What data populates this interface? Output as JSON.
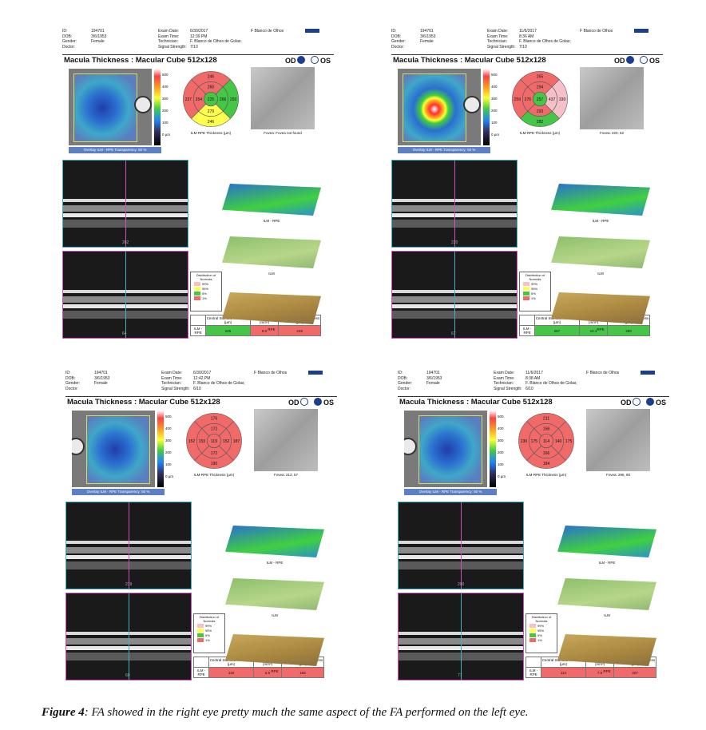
{
  "panels": [
    {
      "header": {
        "labels1": [
          "ID:",
          "DOB:",
          "Gender:",
          "Doctor:"
        ],
        "values1": [
          "194701",
          "3/6/1953",
          "Female",
          ""
        ],
        "labels2": [
          "Exam Date:",
          "Exam Time:",
          "Technician:",
          "Signal Strength:"
        ],
        "values2": [
          "6/30/2017",
          "12:39 PM",
          "F. Blanco de Olhos de Golas;",
          "7/10"
        ],
        "clinic": "F Blanco de Olhos"
      },
      "title": "Macula Thickness : Macular Cube 512x128",
      "eye_od": "OD",
      "eye_os": "OS",
      "selected": "OD",
      "colorbar": [
        "500",
        "400",
        "300",
        "200",
        "100",
        "0 µm"
      ],
      "overlay": "Overlay ILM - RPE  Transparency: 50 %",
      "etdrs": {
        "center": "225",
        "inner": [
          "260",
          "266",
          "279",
          "254"
        ],
        "outer": [
          "246",
          "250",
          "246",
          "237"
        ],
        "colors": {
          "center": "#46c646",
          "inner": [
            "#f06a6a",
            "#46c646",
            "#ffff50",
            "#f06a6a"
          ],
          "outer": [
            "#f06a6a",
            "#46c646",
            "#ffff50",
            "#f06a6a"
          ]
        }
      },
      "etdrs_caption": "ILM-RPE Thickness (µm)",
      "fundus_caption": "Fovea: Fovea not found",
      "bscan_h_num": "262",
      "bscan_v_num": "64",
      "surfaces": [
        "ILM - RPE",
        "ILM",
        "RPE"
      ],
      "distribution": {
        "title": "Distribution of Normals",
        "items": [
          "99%",
          "95%",
          "5%",
          "1%"
        ]
      },
      "table": {
        "headers": [
          "Central Subfield Thickness (µm)",
          "Cube Volume (mm³)",
          "Cube Average Thickness (µm)"
        ],
        "row_label": "ILM - RPE",
        "values": [
          "225",
          "9.0",
          "249"
        ],
        "colors": [
          "#46c646",
          "#f06a6a",
          "#f06a6a"
        ]
      }
    },
    {
      "header": {
        "labels1": [
          "ID:",
          "DOB:",
          "Gender:",
          "Doctor:"
        ],
        "values1": [
          "194701",
          "3/6/1953",
          "Female",
          ""
        ],
        "labels2": [
          "Exam Date:",
          "Exam Time:",
          "Technician:",
          "Signal Strength:"
        ],
        "values2": [
          "11/6/2017",
          "8:36 AM",
          "F. Blanco de Olhos de Golas;",
          "7/10"
        ],
        "clinic": "F Blanco de Olhos"
      },
      "title": "Macula Thickness : Macular Cube 512x128",
      "eye_od": "OD",
      "eye_os": "OS",
      "selected": "OD",
      "colorbar": [
        "500",
        "400",
        "300",
        "200",
        "100",
        "0 µm"
      ],
      "overlay": "Overlay ILM - RPE  Transparency: 50 %",
      "etdrs": {
        "center": "257",
        "inner": [
          "294",
          "437",
          "293",
          "276"
        ],
        "outer": [
          "265",
          "330",
          "282",
          "259"
        ],
        "colors": {
          "center": "#46c646",
          "inner": [
            "#f06a6a",
            "#f5c0c8",
            "#f06a6a",
            "#f06a6a"
          ],
          "outer": [
            "#f06a6a",
            "#f5c0c8",
            "#46c646",
            "#f06a6a"
          ]
        }
      },
      "etdrs_caption": "ILM-RPE Thickness (µm)",
      "fundus_caption": "Fovea: 220, 62",
      "bscan_h_num": "220",
      "bscan_v_num": "67",
      "surfaces": [
        "ILM - RPE",
        "ILM",
        "RPE"
      ],
      "distribution": {
        "title": "Distribution of Normals",
        "items": [
          "99%",
          "95%",
          "5%",
          "1%"
        ]
      },
      "table": {
        "headers": [
          "Central Subfield Thickness (µm)",
          "Cube Volume (mm³)",
          "Cube Average Thickness (µm)"
        ],
        "row_label": "ILM - RPE",
        "values": [
          "257",
          "10.1",
          "280"
        ],
        "colors": [
          "#46c646",
          "#46c646",
          "#46c646"
        ]
      }
    },
    {
      "header": {
        "labels1": [
          "ID:",
          "DOB:",
          "Gender:",
          "Doctor:"
        ],
        "values1": [
          "194701",
          "3/6/1953",
          "Female",
          ""
        ],
        "labels2": [
          "Exam Date:",
          "Exam Time:",
          "Technician:",
          "Signal Strength:"
        ],
        "values2": [
          "6/30/2017",
          "12:42 PM",
          "F. Blanco de Olhos de Golas;",
          "6/10"
        ],
        "clinic": "F Blanco de Olhos"
      },
      "title": "Macula Thickness : Macular Cube 512x128",
      "eye_od": "OD",
      "eye_os": "OS",
      "selected": "OS",
      "colorbar": [
        "500",
        "400",
        "300",
        "200",
        "100",
        "0 µm"
      ],
      "overlay": "Overlay ILM - RPE  Transparency: 50 %",
      "etdrs": {
        "center": "119",
        "inner": [
          "172",
          "152",
          "172",
          "153"
        ],
        "outer": [
          "176",
          "187",
          "190",
          "152"
        ],
        "colors": {
          "center": "#f06a6a",
          "inner": [
            "#f06a6a",
            "#f06a6a",
            "#f06a6a",
            "#f06a6a"
          ],
          "outer": [
            "#f06a6a",
            "#f06a6a",
            "#f06a6a",
            "#f06a6a"
          ]
        }
      },
      "etdrs_caption": "ILM-RPE Thickness (µm)",
      "fundus_caption": "Fovea: 212, 57",
      "bscan_h_num": "219",
      "bscan_v_num": "60",
      "surfaces": [
        "ILM - RPE",
        "ILM",
        "RPE"
      ],
      "distribution": {
        "title": "Distribution of Normals",
        "items": [
          "99%",
          "95%",
          "5%",
          "1%"
        ]
      },
      "table": {
        "headers": [
          "Central Subfield Thickness (µm)",
          "Cube Volume (mm³)",
          "Cube Average Thickness (µm)"
        ],
        "row_label": "ILM - RPE",
        "values": [
          "119",
          "6.9",
          "192"
        ],
        "colors": [
          "#f06a6a",
          "#f06a6a",
          "#f06a6a"
        ]
      }
    },
    {
      "header": {
        "labels1": [
          "ID:",
          "DOB:",
          "Gender:",
          "Doctor:"
        ],
        "values1": [
          "194701",
          "3/6/1953",
          "Female",
          ""
        ],
        "labels2": [
          "Exam Date:",
          "Exam Time:",
          "Technician:",
          "Signal Strength:"
        ],
        "values2": [
          "11/6/2017",
          "8:38 AM",
          "F. Blanco de Olhos de Golas;",
          "6/10"
        ],
        "clinic": "F Blanco de Olhos"
      },
      "title": "Macula Thickness : Macular Cube 512x128",
      "eye_od": "OD",
      "eye_os": "OS",
      "selected": "OS",
      "colorbar": [
        "500",
        "400",
        "300",
        "200",
        "100",
        "0 µm"
      ],
      "overlay": "Overlay ILM - RPE  Transparency: 50 %",
      "etdrs": {
        "center": "114",
        "inner": [
          "158",
          "140",
          "166",
          "175"
        ],
        "outer": [
          "211",
          "175",
          "184",
          "230"
        ],
        "colors": {
          "center": "#f06a6a",
          "inner": [
            "#f06a6a",
            "#f06a6a",
            "#f06a6a",
            "#f06a6a"
          ],
          "outer": [
            "#f06a6a",
            "#f06a6a",
            "#f06a6a",
            "#f06a6a"
          ]
        }
      },
      "etdrs_caption": "ILM-RPE Thickness (µm)",
      "fundus_caption": "Fovea: 296, 80",
      "bscan_h_num": "200",
      "bscan_v_num": "77",
      "surfaces": [
        "ILM - RPE",
        "ILM",
        "RPE"
      ],
      "distribution": {
        "title": "Distribution of Normals",
        "items": [
          "99%",
          "95%",
          "5%",
          "1%"
        ]
      },
      "table": {
        "headers": [
          "Central Subfield Thickness (µm)",
          "Cube Volume (mm³)",
          "Cube Average Thickness (µm)"
        ],
        "row_label": "ILM - RPE",
        "values": [
          "114",
          "7.5",
          "207"
        ],
        "colors": [
          "#f06a6a",
          "#f06a6a",
          "#f06a6a"
        ]
      }
    }
  ],
  "distribution_colors": [
    "#f5c0c8",
    "#ffff50",
    "#46c646",
    "#f06a6a"
  ],
  "caption": {
    "label": "Figure 4",
    "text": ": FA showed in the right eye pretty much the same aspect of the FA performed on the left eye."
  }
}
